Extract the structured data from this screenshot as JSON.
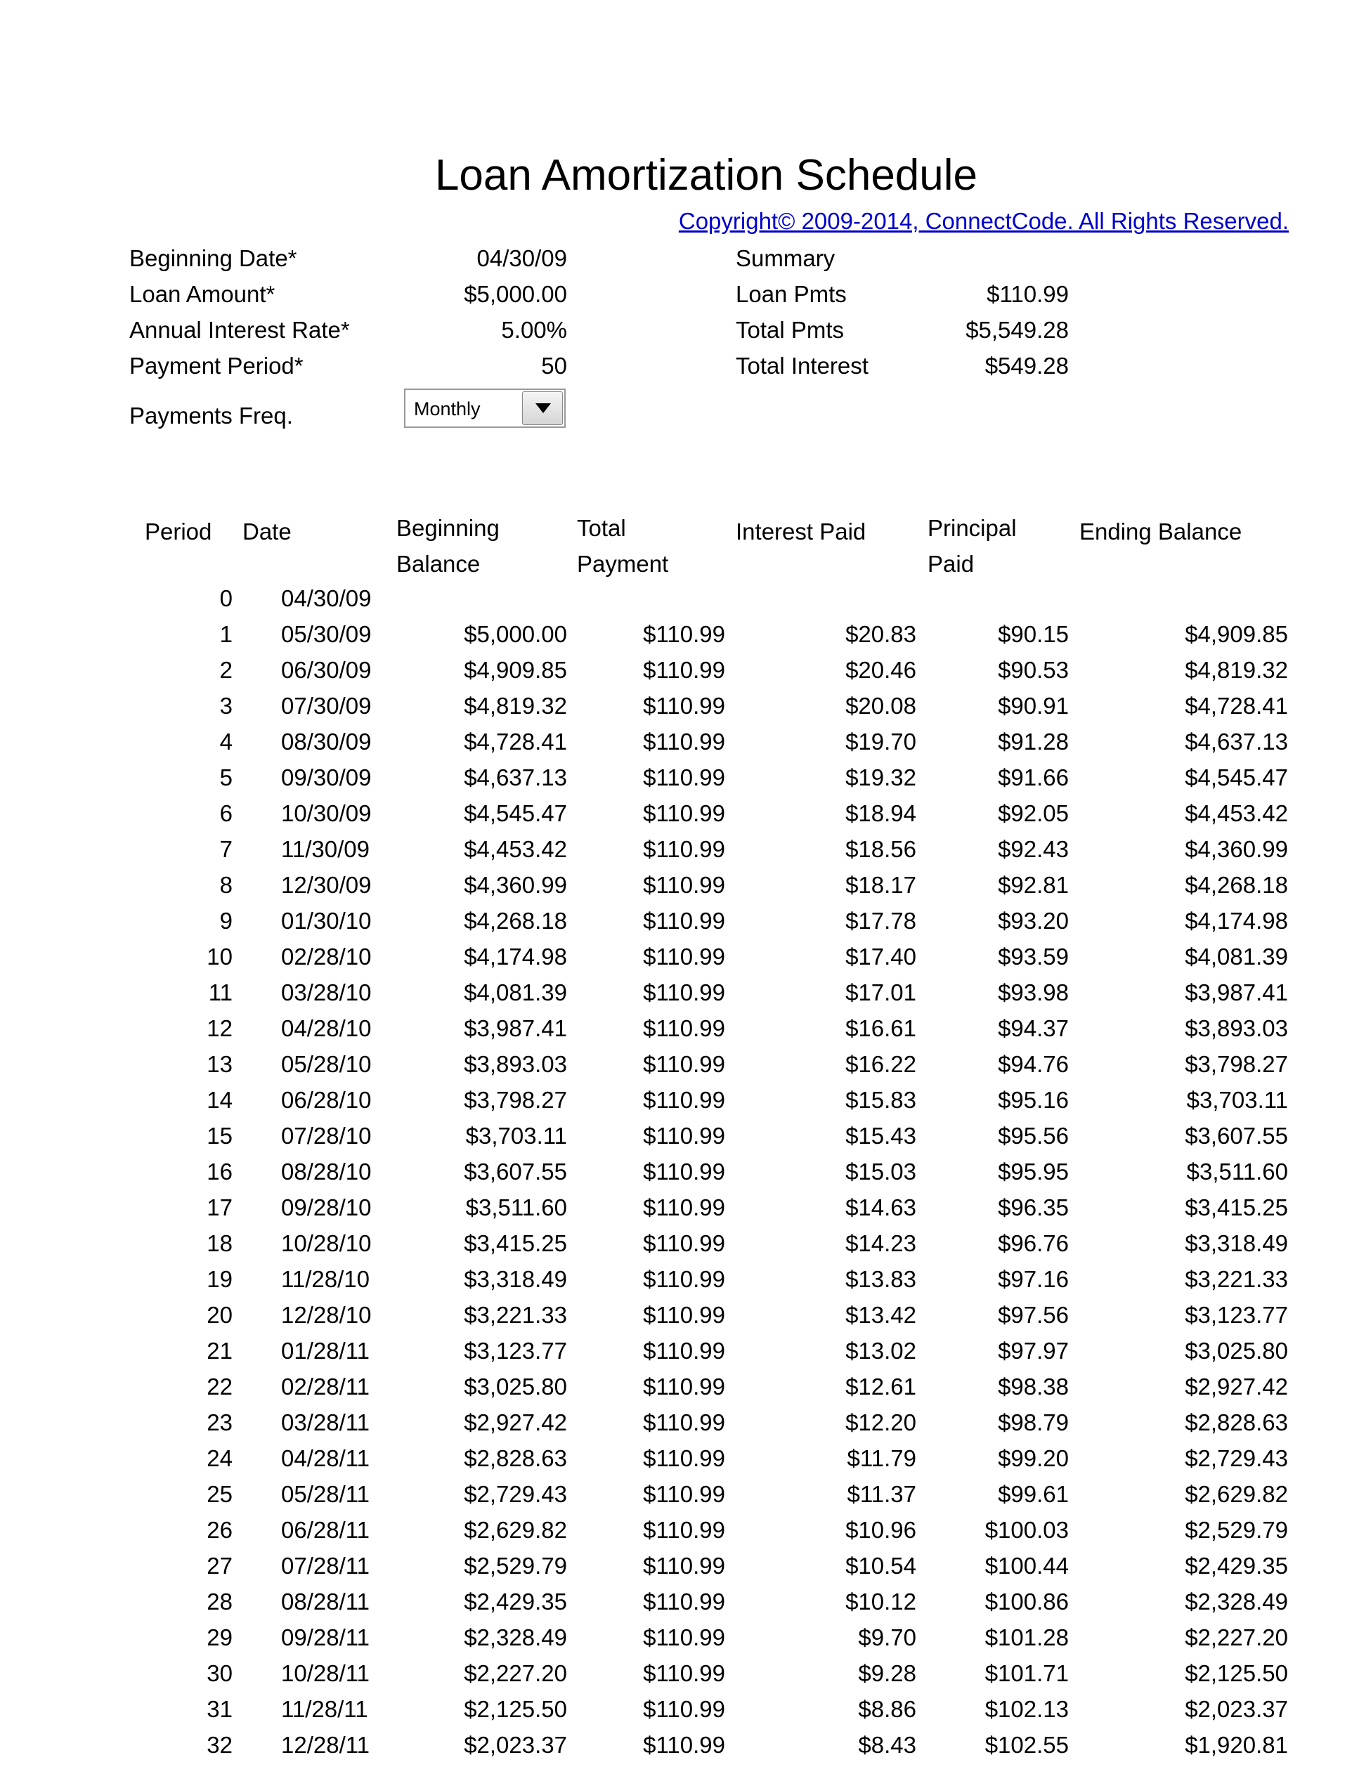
{
  "title": "Loan Amortization Schedule",
  "copyright": "Copyright© 2009-2014, ConnectCode. All Rights Reserved.",
  "inputs": {
    "beginning_date": {
      "label": "Beginning Date*",
      "value": "04/30/09"
    },
    "loan_amount": {
      "label": "Loan Amount*",
      "value": "$5,000.00"
    },
    "annual_interest_rate": {
      "label": "Annual Interest Rate*",
      "value": "5.00%"
    },
    "payment_period": {
      "label": "Payment Period*",
      "value": "50"
    },
    "payments_freq": {
      "label": "Payments Freq.",
      "value": "Monthly"
    }
  },
  "summary": {
    "heading": "Summary",
    "loan_pmts": {
      "label": "Loan Pmts",
      "value": "$110.99"
    },
    "total_pmts": {
      "label": "Total Pmts",
      "value": "$5,549.28"
    },
    "total_interest": {
      "label": "Total Interest",
      "value": "$549.28"
    }
  },
  "table": {
    "headers": {
      "period": "Period",
      "date": "Date",
      "beginning_1": "Beginning",
      "beginning_2": "Balance",
      "total_1": "Total",
      "total_2": "Payment",
      "interest": "Interest Paid",
      "principal_1": "Principal",
      "principal_2": "Paid",
      "ending": "Ending Balance"
    },
    "rows": [
      [
        "0",
        "04/30/09",
        "",
        "",
        "",
        "",
        ""
      ],
      [
        "1",
        "05/30/09",
        "$5,000.00",
        "$110.99",
        "$20.83",
        "$90.15",
        "$4,909.85"
      ],
      [
        "2",
        "06/30/09",
        "$4,909.85",
        "$110.99",
        "$20.46",
        "$90.53",
        "$4,819.32"
      ],
      [
        "3",
        "07/30/09",
        "$4,819.32",
        "$110.99",
        "$20.08",
        "$90.91",
        "$4,728.41"
      ],
      [
        "4",
        "08/30/09",
        "$4,728.41",
        "$110.99",
        "$19.70",
        "$91.28",
        "$4,637.13"
      ],
      [
        "5",
        "09/30/09",
        "$4,637.13",
        "$110.99",
        "$19.32",
        "$91.66",
        "$4,545.47"
      ],
      [
        "6",
        "10/30/09",
        "$4,545.47",
        "$110.99",
        "$18.94",
        "$92.05",
        "$4,453.42"
      ],
      [
        "7",
        "11/30/09",
        "$4,453.42",
        "$110.99",
        "$18.56",
        "$92.43",
        "$4,360.99"
      ],
      [
        "8",
        "12/30/09",
        "$4,360.99",
        "$110.99",
        "$18.17",
        "$92.81",
        "$4,268.18"
      ],
      [
        "9",
        "01/30/10",
        "$4,268.18",
        "$110.99",
        "$17.78",
        "$93.20",
        "$4,174.98"
      ],
      [
        "10",
        "02/28/10",
        "$4,174.98",
        "$110.99",
        "$17.40",
        "$93.59",
        "$4,081.39"
      ],
      [
        "11",
        "03/28/10",
        "$4,081.39",
        "$110.99",
        "$17.01",
        "$93.98",
        "$3,987.41"
      ],
      [
        "12",
        "04/28/10",
        "$3,987.41",
        "$110.99",
        "$16.61",
        "$94.37",
        "$3,893.03"
      ],
      [
        "13",
        "05/28/10",
        "$3,893.03",
        "$110.99",
        "$16.22",
        "$94.76",
        "$3,798.27"
      ],
      [
        "14",
        "06/28/10",
        "$3,798.27",
        "$110.99",
        "$15.83",
        "$95.16",
        "$3,703.11"
      ],
      [
        "15",
        "07/28/10",
        "$3,703.11",
        "$110.99",
        "$15.43",
        "$95.56",
        "$3,607.55"
      ],
      [
        "16",
        "08/28/10",
        "$3,607.55",
        "$110.99",
        "$15.03",
        "$95.95",
        "$3,511.60"
      ],
      [
        "17",
        "09/28/10",
        "$3,511.60",
        "$110.99",
        "$14.63",
        "$96.35",
        "$3,415.25"
      ],
      [
        "18",
        "10/28/10",
        "$3,415.25",
        "$110.99",
        "$14.23",
        "$96.76",
        "$3,318.49"
      ],
      [
        "19",
        "11/28/10",
        "$3,318.49",
        "$110.99",
        "$13.83",
        "$97.16",
        "$3,221.33"
      ],
      [
        "20",
        "12/28/10",
        "$3,221.33",
        "$110.99",
        "$13.42",
        "$97.56",
        "$3,123.77"
      ],
      [
        "21",
        "01/28/11",
        "$3,123.77",
        "$110.99",
        "$13.02",
        "$97.97",
        "$3,025.80"
      ],
      [
        "22",
        "02/28/11",
        "$3,025.80",
        "$110.99",
        "$12.61",
        "$98.38",
        "$2,927.42"
      ],
      [
        "23",
        "03/28/11",
        "$2,927.42",
        "$110.99",
        "$12.20",
        "$98.79",
        "$2,828.63"
      ],
      [
        "24",
        "04/28/11",
        "$2,828.63",
        "$110.99",
        "$11.79",
        "$99.20",
        "$2,729.43"
      ],
      [
        "25",
        "05/28/11",
        "$2,729.43",
        "$110.99",
        "$11.37",
        "$99.61",
        "$2,629.82"
      ],
      [
        "26",
        "06/28/11",
        "$2,629.82",
        "$110.99",
        "$10.96",
        "$100.03",
        "$2,529.79"
      ],
      [
        "27",
        "07/28/11",
        "$2,529.79",
        "$110.99",
        "$10.54",
        "$100.44",
        "$2,429.35"
      ],
      [
        "28",
        "08/28/11",
        "$2,429.35",
        "$110.99",
        "$10.12",
        "$100.86",
        "$2,328.49"
      ],
      [
        "29",
        "09/28/11",
        "$2,328.49",
        "$110.99",
        "$9.70",
        "$101.28",
        "$2,227.20"
      ],
      [
        "30",
        "10/28/11",
        "$2,227.20",
        "$110.99",
        "$9.28",
        "$101.71",
        "$2,125.50"
      ],
      [
        "31",
        "11/28/11",
        "$2,125.50",
        "$110.99",
        "$8.86",
        "$102.13",
        "$2,023.37"
      ],
      [
        "32",
        "12/28/11",
        "$2,023.37",
        "$110.99",
        "$8.43",
        "$102.55",
        "$1,920.81"
      ]
    ]
  }
}
